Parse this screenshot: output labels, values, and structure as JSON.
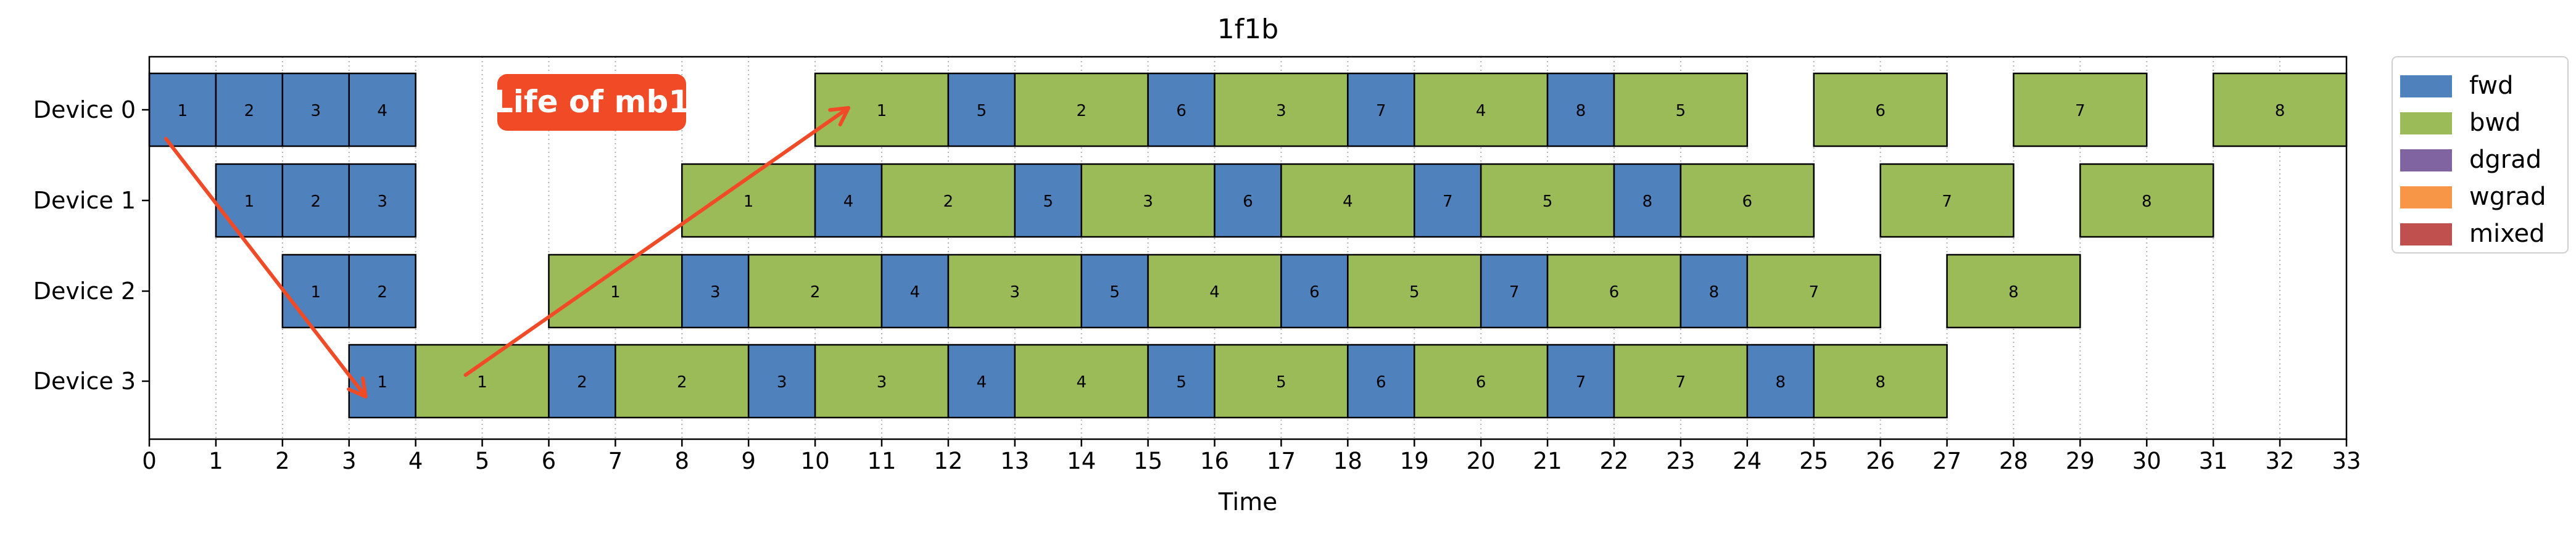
{
  "chart_data": {
    "type": "gantt",
    "title": "1f1b",
    "xlabel": "Time",
    "ylabel": "",
    "xlim": [
      0,
      33
    ],
    "x_ticks": [
      0,
      1,
      2,
      3,
      4,
      5,
      6,
      7,
      8,
      9,
      10,
      11,
      12,
      13,
      14,
      15,
      16,
      17,
      18,
      19,
      20,
      21,
      22,
      23,
      24,
      25,
      26,
      27,
      28,
      29,
      30,
      31,
      32,
      33
    ],
    "grid": "vertical dotted",
    "legend_position": "outside top-right",
    "devices": [
      "Device 0",
      "Device 1",
      "Device 2",
      "Device 3"
    ],
    "legend": [
      {
        "name": "fwd",
        "color": "#4f81bd"
      },
      {
        "name": "bwd",
        "color": "#9bbb59"
      },
      {
        "name": "dgrad",
        "color": "#8064a2"
      },
      {
        "name": "wgrad",
        "color": "#f79646"
      },
      {
        "name": "mixed",
        "color": "#c0504d"
      }
    ],
    "tasks": [
      {
        "device": 0,
        "type": "fwd",
        "mb": "1",
        "start": 0,
        "end": 1
      },
      {
        "device": 0,
        "type": "fwd",
        "mb": "2",
        "start": 1,
        "end": 2
      },
      {
        "device": 0,
        "type": "fwd",
        "mb": "3",
        "start": 2,
        "end": 3
      },
      {
        "device": 0,
        "type": "fwd",
        "mb": "4",
        "start": 3,
        "end": 4
      },
      {
        "device": 0,
        "type": "bwd",
        "mb": "1",
        "start": 10,
        "end": 12
      },
      {
        "device": 0,
        "type": "fwd",
        "mb": "5",
        "start": 12,
        "end": 13
      },
      {
        "device": 0,
        "type": "bwd",
        "mb": "2",
        "start": 13,
        "end": 15
      },
      {
        "device": 0,
        "type": "fwd",
        "mb": "6",
        "start": 15,
        "end": 16
      },
      {
        "device": 0,
        "type": "bwd",
        "mb": "3",
        "start": 16,
        "end": 18
      },
      {
        "device": 0,
        "type": "fwd",
        "mb": "7",
        "start": 18,
        "end": 19
      },
      {
        "device": 0,
        "type": "bwd",
        "mb": "4",
        "start": 19,
        "end": 21
      },
      {
        "device": 0,
        "type": "fwd",
        "mb": "8",
        "start": 21,
        "end": 22
      },
      {
        "device": 0,
        "type": "bwd",
        "mb": "5",
        "start": 22,
        "end": 24
      },
      {
        "device": 0,
        "type": "bwd",
        "mb": "6",
        "start": 25,
        "end": 27
      },
      {
        "device": 0,
        "type": "bwd",
        "mb": "7",
        "start": 28,
        "end": 30
      },
      {
        "device": 0,
        "type": "bwd",
        "mb": "8",
        "start": 31,
        "end": 33
      },
      {
        "device": 1,
        "type": "fwd",
        "mb": "1",
        "start": 1,
        "end": 2
      },
      {
        "device": 1,
        "type": "fwd",
        "mb": "2",
        "start": 2,
        "end": 3
      },
      {
        "device": 1,
        "type": "fwd",
        "mb": "3",
        "start": 3,
        "end": 4
      },
      {
        "device": 1,
        "type": "bwd",
        "mb": "1",
        "start": 8,
        "end": 10
      },
      {
        "device": 1,
        "type": "fwd",
        "mb": "4",
        "start": 10,
        "end": 11
      },
      {
        "device": 1,
        "type": "bwd",
        "mb": "2",
        "start": 11,
        "end": 13
      },
      {
        "device": 1,
        "type": "fwd",
        "mb": "5",
        "start": 13,
        "end": 14
      },
      {
        "device": 1,
        "type": "bwd",
        "mb": "3",
        "start": 14,
        "end": 16
      },
      {
        "device": 1,
        "type": "fwd",
        "mb": "6",
        "start": 16,
        "end": 17
      },
      {
        "device": 1,
        "type": "bwd",
        "mb": "4",
        "start": 17,
        "end": 19
      },
      {
        "device": 1,
        "type": "fwd",
        "mb": "7",
        "start": 19,
        "end": 20
      },
      {
        "device": 1,
        "type": "bwd",
        "mb": "5",
        "start": 20,
        "end": 22
      },
      {
        "device": 1,
        "type": "fwd",
        "mb": "8",
        "start": 22,
        "end": 23
      },
      {
        "device": 1,
        "type": "bwd",
        "mb": "6",
        "start": 23,
        "end": 25
      },
      {
        "device": 1,
        "type": "bwd",
        "mb": "7",
        "start": 26,
        "end": 28
      },
      {
        "device": 1,
        "type": "bwd",
        "mb": "8",
        "start": 29,
        "end": 31
      },
      {
        "device": 2,
        "type": "fwd",
        "mb": "1",
        "start": 2,
        "end": 3
      },
      {
        "device": 2,
        "type": "fwd",
        "mb": "2",
        "start": 3,
        "end": 4
      },
      {
        "device": 2,
        "type": "bwd",
        "mb": "1",
        "start": 6,
        "end": 8
      },
      {
        "device": 2,
        "type": "fwd",
        "mb": "3",
        "start": 8,
        "end": 9
      },
      {
        "device": 2,
        "type": "bwd",
        "mb": "2",
        "start": 9,
        "end": 11
      },
      {
        "device": 2,
        "type": "fwd",
        "mb": "4",
        "start": 11,
        "end": 12
      },
      {
        "device": 2,
        "type": "bwd",
        "mb": "3",
        "start": 12,
        "end": 14
      },
      {
        "device": 2,
        "type": "fwd",
        "mb": "5",
        "start": 14,
        "end": 15
      },
      {
        "device": 2,
        "type": "bwd",
        "mb": "4",
        "start": 15,
        "end": 17
      },
      {
        "device": 2,
        "type": "fwd",
        "mb": "6",
        "start": 17,
        "end": 18
      },
      {
        "device": 2,
        "type": "bwd",
        "mb": "5",
        "start": 18,
        "end": 20
      },
      {
        "device": 2,
        "type": "fwd",
        "mb": "7",
        "start": 20,
        "end": 21
      },
      {
        "device": 2,
        "type": "bwd",
        "mb": "6",
        "start": 21,
        "end": 23
      },
      {
        "device": 2,
        "type": "fwd",
        "mb": "8",
        "start": 23,
        "end": 24
      },
      {
        "device": 2,
        "type": "bwd",
        "mb": "7",
        "start": 24,
        "end": 26
      },
      {
        "device": 2,
        "type": "bwd",
        "mb": "8",
        "start": 27,
        "end": 29
      },
      {
        "device": 3,
        "type": "fwd",
        "mb": "1",
        "start": 3,
        "end": 4
      },
      {
        "device": 3,
        "type": "bwd",
        "mb": "1",
        "start": 4,
        "end": 6
      },
      {
        "device": 3,
        "type": "fwd",
        "mb": "2",
        "start": 6,
        "end": 7
      },
      {
        "device": 3,
        "type": "bwd",
        "mb": "2",
        "start": 7,
        "end": 9
      },
      {
        "device": 3,
        "type": "fwd",
        "mb": "3",
        "start": 9,
        "end": 10
      },
      {
        "device": 3,
        "type": "bwd",
        "mb": "3",
        "start": 10,
        "end": 12
      },
      {
        "device": 3,
        "type": "fwd",
        "mb": "4",
        "start": 12,
        "end": 13
      },
      {
        "device": 3,
        "type": "bwd",
        "mb": "4",
        "start": 13,
        "end": 15
      },
      {
        "device": 3,
        "type": "fwd",
        "mb": "5",
        "start": 15,
        "end": 16
      },
      {
        "device": 3,
        "type": "bwd",
        "mb": "5",
        "start": 16,
        "end": 18
      },
      {
        "device": 3,
        "type": "fwd",
        "mb": "6",
        "start": 18,
        "end": 19
      },
      {
        "device": 3,
        "type": "bwd",
        "mb": "6",
        "start": 19,
        "end": 21
      },
      {
        "device": 3,
        "type": "fwd",
        "mb": "7",
        "start": 21,
        "end": 22
      },
      {
        "device": 3,
        "type": "bwd",
        "mb": "7",
        "start": 22,
        "end": 24
      },
      {
        "device": 3,
        "type": "fwd",
        "mb": "8",
        "start": 24,
        "end": 25
      },
      {
        "device": 3,
        "type": "bwd",
        "mb": "8",
        "start": 25,
        "end": 27
      }
    ],
    "annotation": {
      "text": "Life of mb1",
      "color": "#f04b26",
      "path": [
        {
          "device": 0,
          "t": 0.25
        },
        {
          "device": 3,
          "t": 3.25
        },
        {
          "device": 3,
          "t": 4.75
        },
        {
          "device": 0,
          "t": 10.5
        }
      ]
    }
  }
}
